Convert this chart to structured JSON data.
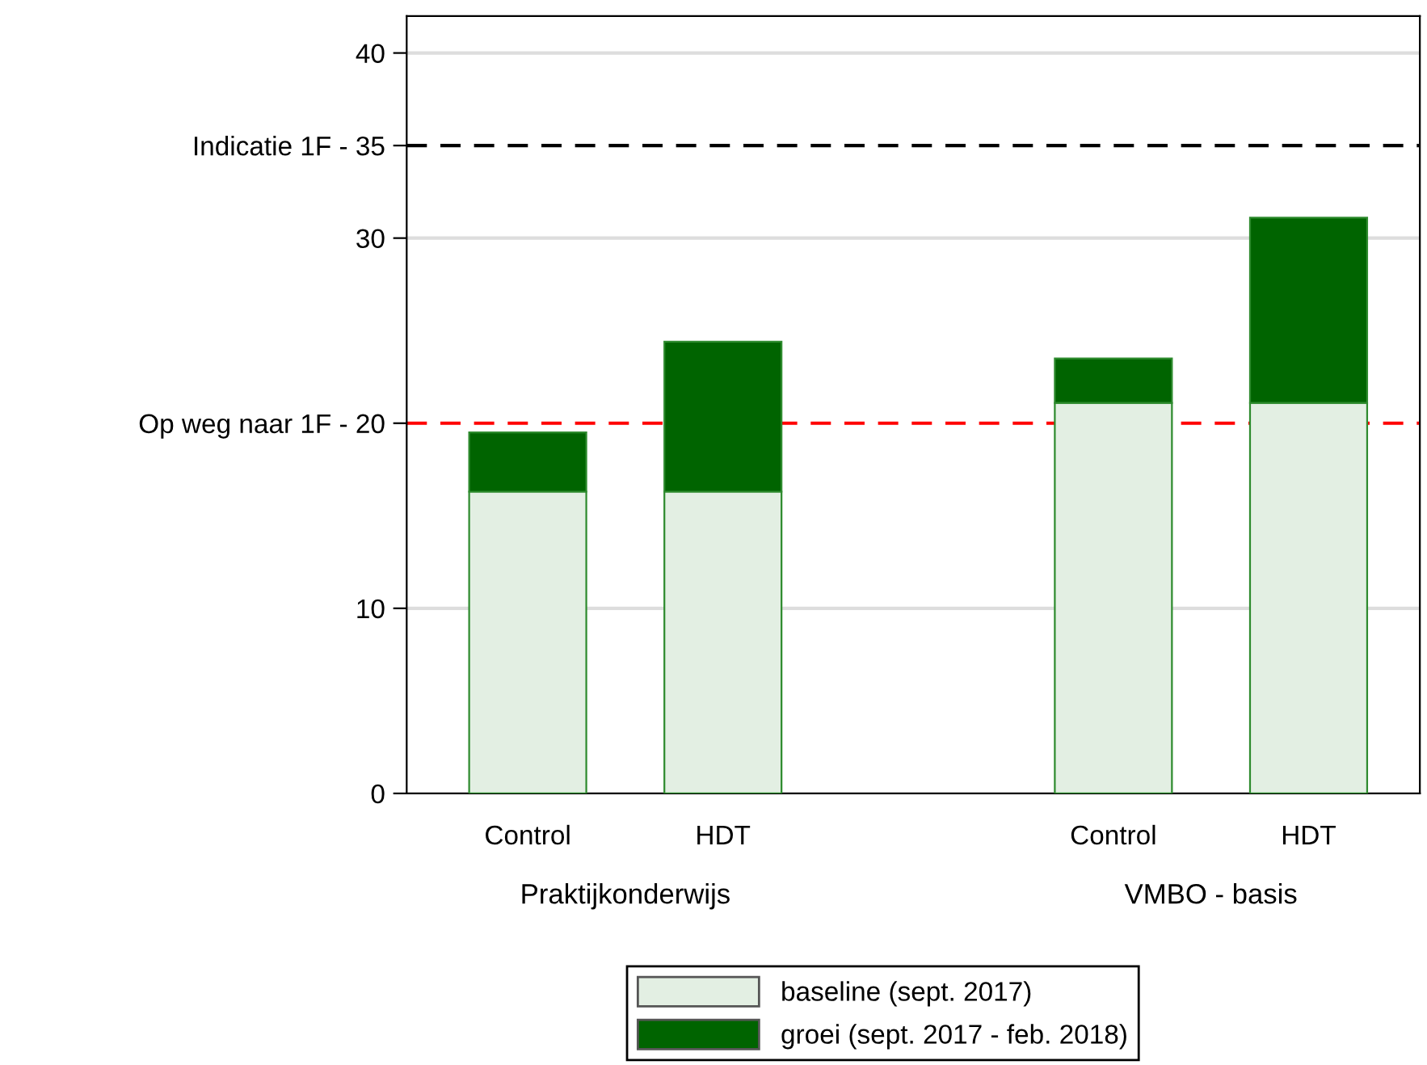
{
  "chart_data": {
    "type": "bar",
    "stacked": true,
    "categories": [
      "Control",
      "HDT",
      null,
      "Control",
      "HDT"
    ],
    "series": [
      {
        "name": "baseline (sept. 2017)",
        "color": "#e3efe3",
        "values": [
          16.3,
          16.3,
          null,
          21.1,
          21.1
        ]
      },
      {
        "name": "groei (sept. 2017 - feb. 2018)",
        "color": "#006400",
        "values": [
          3.2,
          8.1,
          null,
          2.4,
          10.0
        ]
      }
    ],
    "ylim": [
      0,
      42
    ],
    "yticks": [
      0,
      10,
      {
        "value": 20,
        "label": "Op weg naar 1F - 20"
      },
      30,
      {
        "value": 35,
        "label": "Indicatie 1F - 35"
      },
      40
    ],
    "ref_lines": [
      {
        "axis": "y",
        "value": 20,
        "color": "#ff0000",
        "line_style": "dashed"
      },
      {
        "axis": "y",
        "value": 35,
        "color": "#000000",
        "line_style": "dashed"
      }
    ],
    "annotations": [
      "Praktijkonderwijs",
      "VMBO - basis"
    ],
    "grid": "y",
    "legend": "bottom"
  }
}
